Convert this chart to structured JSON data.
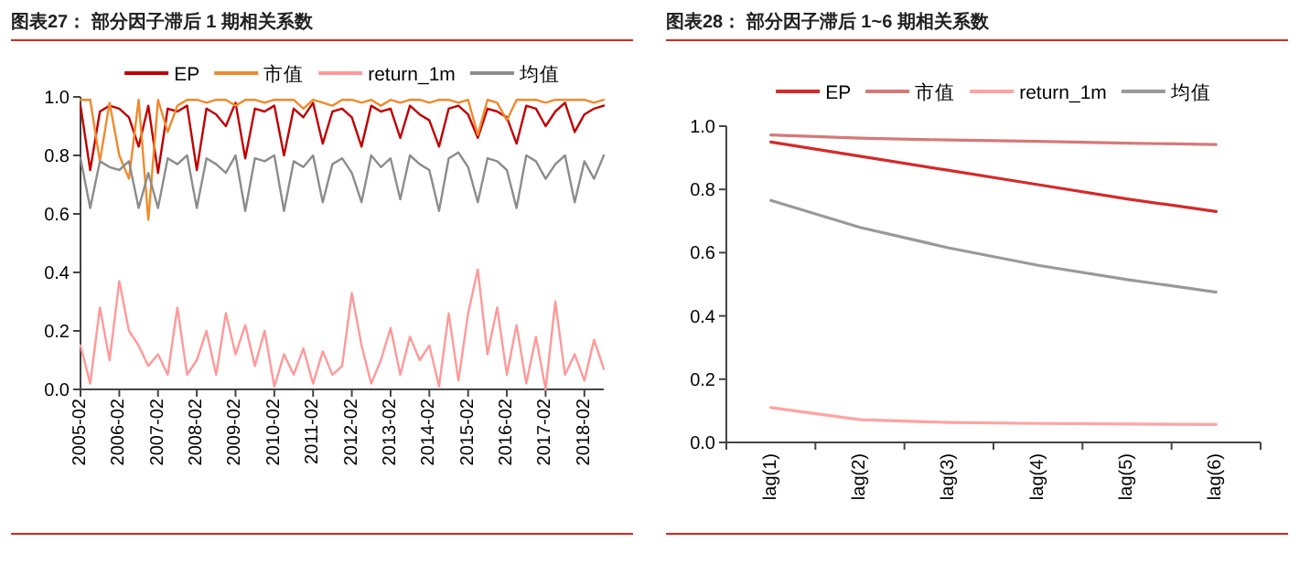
{
  "chart_data": [
    {
      "type": "line",
      "title": "图表27：  部分因子滞后 1 期相关系数",
      "x": [
        "2005-02",
        "2005-05",
        "2005-08",
        "2005-11",
        "2006-02",
        "2006-05",
        "2006-08",
        "2006-11",
        "2007-02",
        "2007-05",
        "2007-08",
        "2007-11",
        "2008-02",
        "2008-05",
        "2008-08",
        "2008-11",
        "2009-02",
        "2009-05",
        "2009-08",
        "2009-11",
        "2010-02",
        "2010-05",
        "2010-08",
        "2010-11",
        "2011-02",
        "2011-05",
        "2011-08",
        "2011-11",
        "2012-02",
        "2012-05",
        "2012-08",
        "2012-11",
        "2013-02",
        "2013-05",
        "2013-08",
        "2013-11",
        "2014-02",
        "2014-05",
        "2014-08",
        "2014-11",
        "2015-02",
        "2015-05",
        "2015-08",
        "2015-11",
        "2016-02",
        "2016-05",
        "2016-08",
        "2016-11",
        "2017-02",
        "2017-05",
        "2017-08",
        "2017-11",
        "2018-02",
        "2018-05",
        "2018-08"
      ],
      "series": [
        {
          "name": "EP",
          "color": "#c00000",
          "values": [
            0.97,
            0.75,
            0.95,
            0.97,
            0.96,
            0.93,
            0.83,
            0.97,
            0.74,
            0.96,
            0.95,
            0.97,
            0.75,
            0.96,
            0.94,
            0.9,
            0.98,
            0.79,
            0.96,
            0.95,
            0.97,
            0.8,
            0.96,
            0.93,
            0.98,
            0.84,
            0.95,
            0.96,
            0.93,
            0.83,
            0.97,
            0.95,
            0.96,
            0.86,
            0.97,
            0.94,
            0.92,
            0.83,
            0.96,
            0.97,
            0.94,
            0.86,
            0.96,
            0.95,
            0.93,
            0.84,
            0.97,
            0.96,
            0.9,
            0.95,
            0.98,
            0.88,
            0.94,
            0.96,
            0.97
          ]
        },
        {
          "name": "市值",
          "color": "#f08a2c",
          "values": [
            0.99,
            0.99,
            0.78,
            0.98,
            0.8,
            0.72,
            0.99,
            0.58,
            0.99,
            0.88,
            0.97,
            0.99,
            0.99,
            0.98,
            0.99,
            0.99,
            0.97,
            0.99,
            0.99,
            0.98,
            0.99,
            0.99,
            0.99,
            0.96,
            0.99,
            0.98,
            0.97,
            0.99,
            0.99,
            0.98,
            0.99,
            0.97,
            0.99,
            0.98,
            0.99,
            0.99,
            0.98,
            0.99,
            0.99,
            0.98,
            0.99,
            0.87,
            0.99,
            0.98,
            0.92,
            0.99,
            0.99,
            0.99,
            0.98,
            0.99,
            0.99,
            0.99,
            0.99,
            0.98,
            0.99
          ]
        },
        {
          "name": "return_1m",
          "color": "#ff9999",
          "values": [
            0.15,
            0.02,
            0.28,
            0.1,
            0.37,
            0.2,
            0.15,
            0.08,
            0.12,
            0.05,
            0.28,
            0.05,
            0.1,
            0.2,
            0.05,
            0.26,
            0.12,
            0.22,
            0.08,
            0.2,
            0.01,
            0.12,
            0.05,
            0.14,
            0.02,
            0.13,
            0.05,
            0.08,
            0.33,
            0.15,
            0.02,
            0.1,
            0.21,
            0.05,
            0.18,
            0.1,
            0.15,
            0.01,
            0.26,
            0.03,
            0.26,
            0.41,
            0.12,
            0.28,
            0.05,
            0.22,
            0.02,
            0.18,
            0.0,
            0.3,
            0.05,
            0.12,
            0.03,
            0.17,
            0.07
          ]
        },
        {
          "name": "均值",
          "color": "#8c8c8c",
          "values": [
            0.79,
            0.62,
            0.78,
            0.76,
            0.75,
            0.78,
            0.62,
            0.74,
            0.62,
            0.79,
            0.77,
            0.8,
            0.62,
            0.79,
            0.77,
            0.74,
            0.8,
            0.61,
            0.79,
            0.78,
            0.8,
            0.61,
            0.78,
            0.76,
            0.8,
            0.64,
            0.77,
            0.79,
            0.74,
            0.64,
            0.8,
            0.76,
            0.79,
            0.65,
            0.8,
            0.77,
            0.75,
            0.61,
            0.79,
            0.81,
            0.76,
            0.64,
            0.79,
            0.78,
            0.75,
            0.62,
            0.8,
            0.78,
            0.72,
            0.77,
            0.8,
            0.64,
            0.78,
            0.72,
            0.8
          ]
        }
      ],
      "xlim": [
        "2005-02",
        "2018-08"
      ],
      "xticks": [
        "2005-02",
        "2006-02",
        "2007-02",
        "2008-02",
        "2009-02",
        "2010-02",
        "2011-02",
        "2012-02",
        "2013-02",
        "2014-02",
        "2015-02",
        "2016-02",
        "2017-02",
        "2018-02"
      ],
      "ylim": [
        0,
        1
      ],
      "yticks": [
        {
          "value": 0,
          "label": "0.0"
        },
        {
          "value": 0.2,
          "label": "0.2"
        },
        {
          "value": 0.4,
          "label": "0.4"
        },
        {
          "value": 0.6,
          "label": "0.6"
        },
        {
          "value": 0.8,
          "label": "0.8"
        },
        {
          "value": 1,
          "label": "1.0"
        }
      ],
      "legend": "top",
      "grid": false
    },
    {
      "type": "line",
      "title": "图表28：  部分因子滞后 1~6 期相关系数",
      "categories": [
        "lag(1)",
        "lag(2)",
        "lag(3)",
        "lag(4)",
        "lag(5)",
        "lag(6)"
      ],
      "series": [
        {
          "name": "EP",
          "color": "#d42a2a",
          "values": [
            0.95,
            0.905,
            0.86,
            0.815,
            0.77,
            0.73
          ]
        },
        {
          "name": "市值",
          "color": "#d67878",
          "values": [
            0.972,
            0.962,
            0.956,
            0.952,
            0.946,
            0.942
          ]
        },
        {
          "name": "return_1m",
          "color": "#ffa3a3",
          "values": [
            0.11,
            0.072,
            0.063,
            0.06,
            0.058,
            0.057
          ]
        },
        {
          "name": "均值",
          "color": "#999999",
          "values": [
            0.765,
            0.68,
            0.615,
            0.56,
            0.515,
            0.475
          ]
        }
      ],
      "ylim": [
        0,
        1
      ],
      "yticks": [
        {
          "value": 0,
          "label": "0.0"
        },
        {
          "value": 0.2,
          "label": "0.2"
        },
        {
          "value": 0.4,
          "label": "0.4"
        },
        {
          "value": 0.6,
          "label": "0.6"
        },
        {
          "value": 0.8,
          "label": "0.8"
        },
        {
          "value": 1,
          "label": "1.0"
        }
      ],
      "legend": "top",
      "grid": false
    }
  ]
}
